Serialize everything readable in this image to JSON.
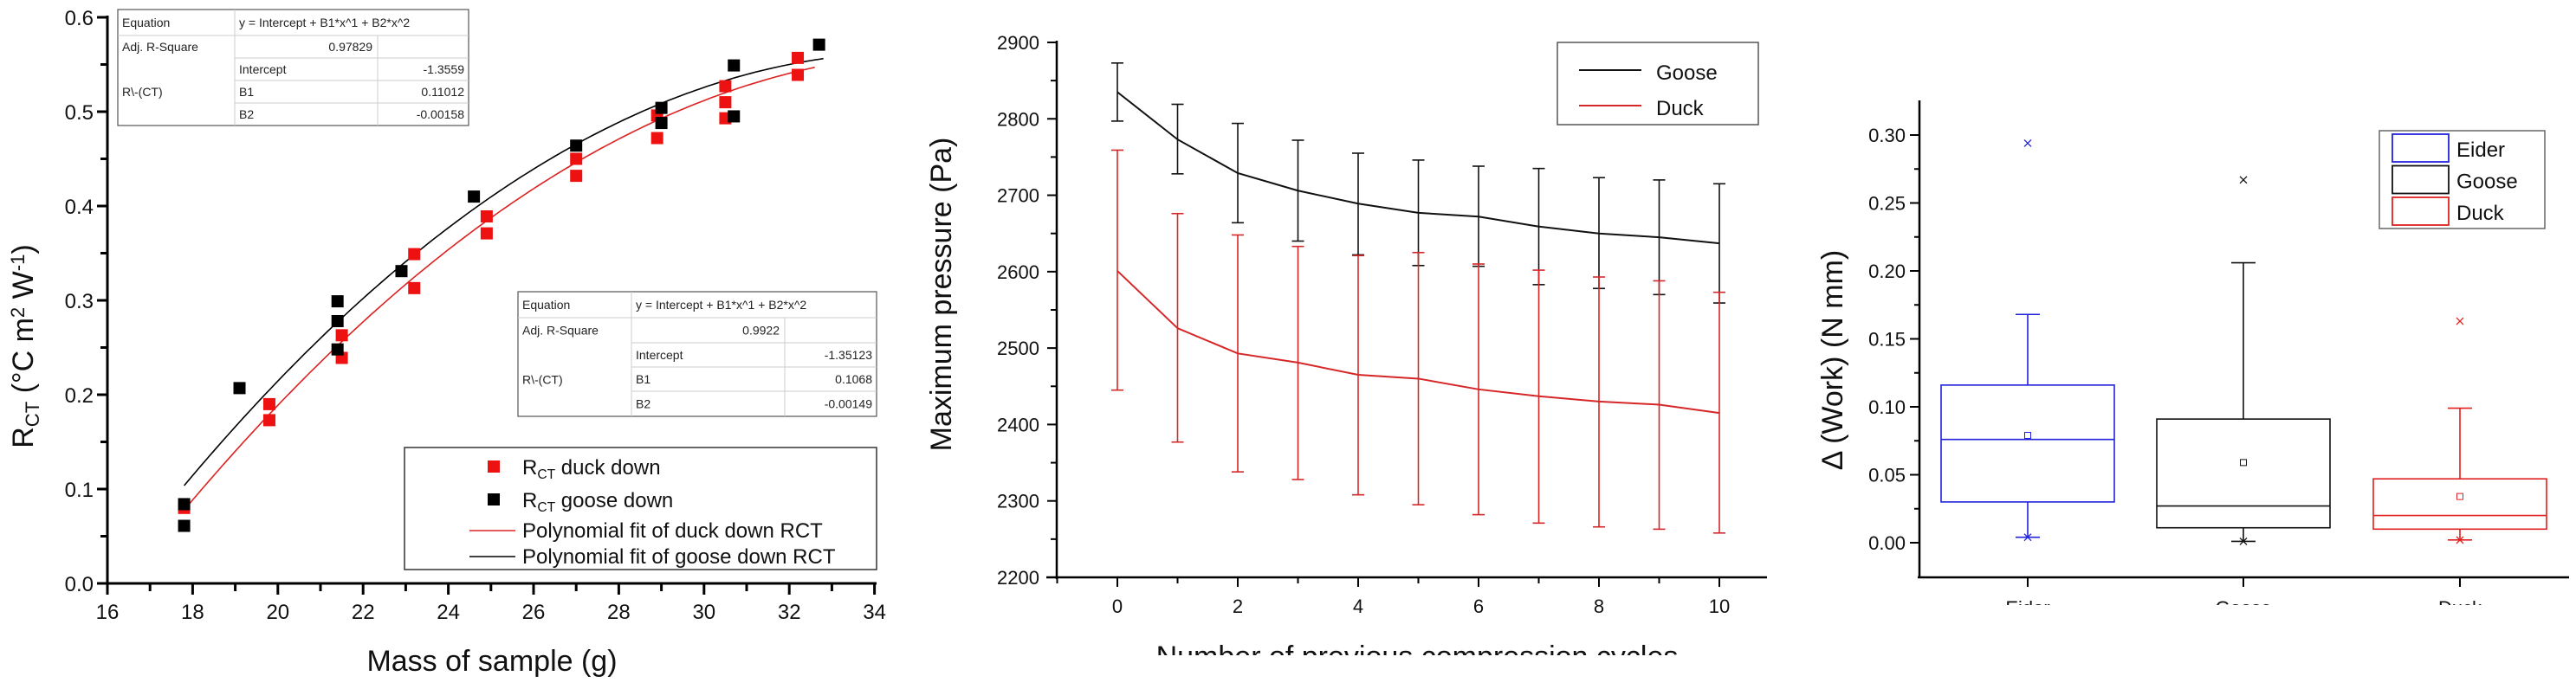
{
  "chart_data": [
    {
      "type": "scatter",
      "xlabel": "Mass of sample (g)",
      "ylabel_parts": [
        {
          "t": "R",
          "s": ""
        },
        {
          "t": "CT",
          "s": "sub"
        },
        {
          "t": " (°C m",
          "s": ""
        },
        {
          "t": "2",
          "s": "sup"
        },
        {
          "t": " W",
          "s": ""
        },
        {
          "t": "-1",
          "s": "sup"
        },
        {
          "t": ")",
          "s": ""
        }
      ],
      "xlim": [
        16,
        34
      ],
      "ylim": [
        0.0,
        0.6
      ],
      "xticks": [
        "16",
        "18",
        "20",
        "22",
        "24",
        "26",
        "28",
        "30",
        "32",
        "34"
      ],
      "yticks": [
        "0.0",
        "0.1",
        "0.2",
        "0.3",
        "0.4",
        "0.5",
        "0.6"
      ],
      "series": [
        {
          "name": "RCT duck down",
          "color": "#ee1111",
          "legend_parts": [
            {
              "t": "R",
              "s": ""
            },
            {
              "t": "CT",
              "s": "sub"
            },
            {
              "t": " duck down",
              "s": ""
            }
          ],
          "points": [
            [
              17.8,
              0.08
            ],
            [
              19.8,
              0.19
            ],
            [
              19.8,
              0.173
            ],
            [
              21.5,
              0.263
            ],
            [
              21.5,
              0.239
            ],
            [
              23.2,
              0.349
            ],
            [
              23.2,
              0.313
            ],
            [
              24.9,
              0.389
            ],
            [
              24.9,
              0.371
            ],
            [
              27.0,
              0.45
            ],
            [
              27.0,
              0.432
            ],
            [
              28.9,
              0.496
            ],
            [
              28.9,
              0.472
            ],
            [
              30.5,
              0.527
            ],
            [
              30.5,
              0.51
            ],
            [
              30.5,
              0.493
            ],
            [
              32.2,
              0.557
            ],
            [
              32.2,
              0.539
            ]
          ]
        },
        {
          "name": "RCT goose down",
          "color": "#000000",
          "legend_parts": [
            {
              "t": "R",
              "s": ""
            },
            {
              "t": "CT",
              "s": "sub"
            },
            {
              "t": " goose down",
              "s": ""
            }
          ],
          "points": [
            [
              17.8,
              0.084
            ],
            [
              17.8,
              0.061
            ],
            [
              19.1,
              0.207
            ],
            [
              21.4,
              0.299
            ],
            [
              21.4,
              0.278
            ],
            [
              21.4,
              0.248
            ],
            [
              22.9,
              0.331
            ],
            [
              24.6,
              0.41
            ],
            [
              27.0,
              0.464
            ],
            [
              29.0,
              0.504
            ],
            [
              29.0,
              0.488
            ],
            [
              30.7,
              0.549
            ],
            [
              30.7,
              0.495
            ],
            [
              32.7,
              0.571
            ]
          ]
        }
      ],
      "fits": [
        {
          "name": "Polynomial fit of duck down RCT",
          "color": "#dd2222",
          "coef": [
            -1.35123,
            0.1068,
            -0.00149
          ],
          "xrange": [
            17.8,
            32.6
          ]
        },
        {
          "name": "Polynomial fit of goose down RCT",
          "color": "#000000",
          "coef": [
            -1.3559,
            0.11012,
            -0.00158
          ],
          "xrange": [
            17.8,
            32.8
          ]
        }
      ],
      "fit_tables": [
        {
          "equation_label": "Equation",
          "equation": "y = Intercept + B1*x^1 + B2*x^2",
          "adj_label": "Adj. R-Square",
          "adj": "0.97829",
          "row_label": "R\\-(CT)",
          "params": [
            [
              "Intercept",
              "-1.3559"
            ],
            [
              "B1",
              "0.11012"
            ],
            [
              "B2",
              "-0.00158"
            ]
          ]
        },
        {
          "equation_label": "Equation",
          "equation": "y = Intercept + B1*x^1 + B2*x^2",
          "adj_label": "Adj. R-Square",
          "adj": "0.9922",
          "row_label": "R\\-(CT)",
          "params": [
            [
              "Intercept",
              "-1.35123"
            ],
            [
              "B1",
              "0.1068"
            ],
            [
              "B2",
              "-0.00149"
            ]
          ]
        }
      ],
      "legend_position": "bottom-right"
    },
    {
      "type": "line",
      "xlabel": "Number of previous compression cycles",
      "ylabel": "Maximum pressure (Pa)",
      "xlim": [
        -1,
        10.6
      ],
      "ylim": [
        2200,
        2900
      ],
      "xticks": [
        "0",
        "2",
        "4",
        "6",
        "8",
        "10"
      ],
      "yticks": [
        "2200",
        "2300",
        "2400",
        "2500",
        "2600",
        "2700",
        "2800",
        "2900"
      ],
      "x": [
        0,
        1,
        2,
        3,
        4,
        5,
        6,
        7,
        8,
        9,
        10
      ],
      "series": [
        {
          "name": "Goose",
          "color": "#111111",
          "values": [
            2835,
            2773,
            2729,
            2706,
            2689,
            2677,
            2672,
            2659,
            2650,
            2645,
            2637
          ],
          "err_high": [
            2873,
            2819,
            2794,
            2772,
            2755,
            2746,
            2738,
            2735,
            2723,
            2720,
            2715
          ],
          "err_low": [
            2797,
            2728,
            2664,
            2640,
            2622,
            2608,
            2607,
            2583,
            2578,
            2570,
            2559
          ]
        },
        {
          "name": "Duck",
          "color": "#d62728",
          "values": [
            2601,
            2526,
            2493,
            2481,
            2465,
            2460,
            2446,
            2437,
            2430,
            2426,
            2415
          ],
          "err_high": [
            2759,
            2676,
            2648,
            2633,
            2621,
            2625,
            2610,
            2602,
            2593,
            2588,
            2573
          ],
          "err_low": [
            2445,
            2377,
            2338,
            2328,
            2308,
            2295,
            2282,
            2271,
            2266,
            2263,
            2258
          ]
        }
      ],
      "legend_position": "top-right"
    },
    {
      "type": "box",
      "xlabel": "",
      "ylabel": "Δ (Work) (N mm)",
      "ylim": [
        -0.025,
        0.325
      ],
      "yticks": [
        "0.00",
        "0.05",
        "0.10",
        "0.15",
        "0.20",
        "0.25",
        "0.30"
      ],
      "categories": [
        "Eider",
        "Goose",
        "Duck"
      ],
      "series": [
        {
          "name": "Eider",
          "color": "#2222dd",
          "whisker_high": 0.168,
          "q3": 0.116,
          "median": 0.076,
          "mean": 0.079,
          "q1": 0.03,
          "whisker_low": 0.004,
          "max": 0.294,
          "min": 0.004
        },
        {
          "name": "Goose",
          "color": "#111111",
          "whisker_high": 0.206,
          "q3": 0.091,
          "median": 0.027,
          "mean": 0.059,
          "q1": 0.011,
          "whisker_low": 0.001,
          "max": 0.267,
          "min": 0.001
        },
        {
          "name": "Duck",
          "color": "#e02020",
          "whisker_high": 0.099,
          "q3": 0.047,
          "median": 0.02,
          "mean": 0.034,
          "q1": 0.01,
          "whisker_low": 0.002,
          "max": 0.163,
          "min": 0.002
        }
      ],
      "legend_position": "top-right"
    }
  ]
}
